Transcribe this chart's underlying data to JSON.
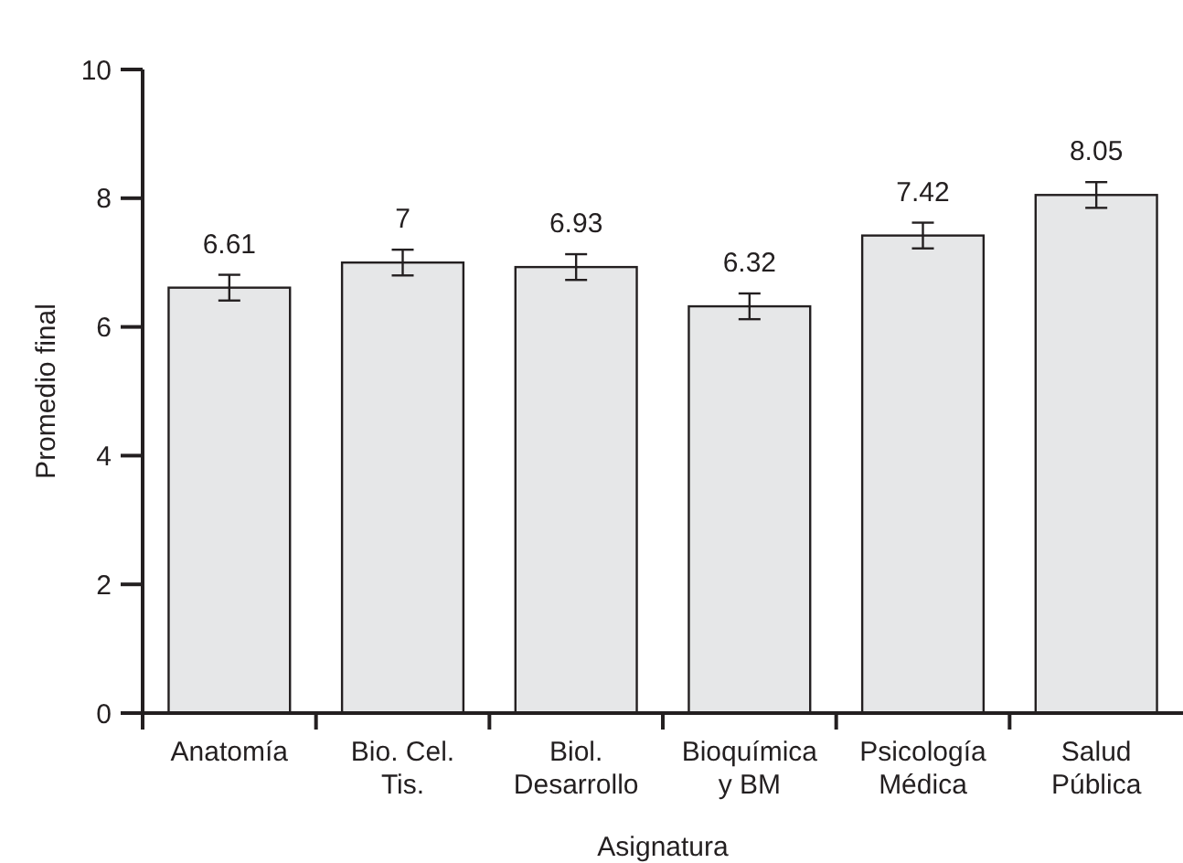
{
  "chart_data": {
    "type": "bar",
    "xlabel": "Asignatura",
    "ylabel": "Promedio final",
    "categories": [
      "Anatomía",
      "Bio. Cel.\nTis.",
      "Biol.\nDesarrollo",
      "Bioquímica\ny BM",
      "Psicología\nMédica",
      "Salud\nPública"
    ],
    "series": [
      {
        "color": "#e6e7e8",
        "values": [
          6.61,
          7,
          6.93,
          6.32,
          7.42,
          8.05
        ],
        "errors": [
          0.2,
          0.2,
          0.2,
          0.2,
          0.2,
          0.2
        ]
      }
    ],
    "ylim": [
      0,
      10
    ],
    "yticks": [
      0,
      2,
      4,
      6,
      8,
      10
    ],
    "data_labels": true
  }
}
